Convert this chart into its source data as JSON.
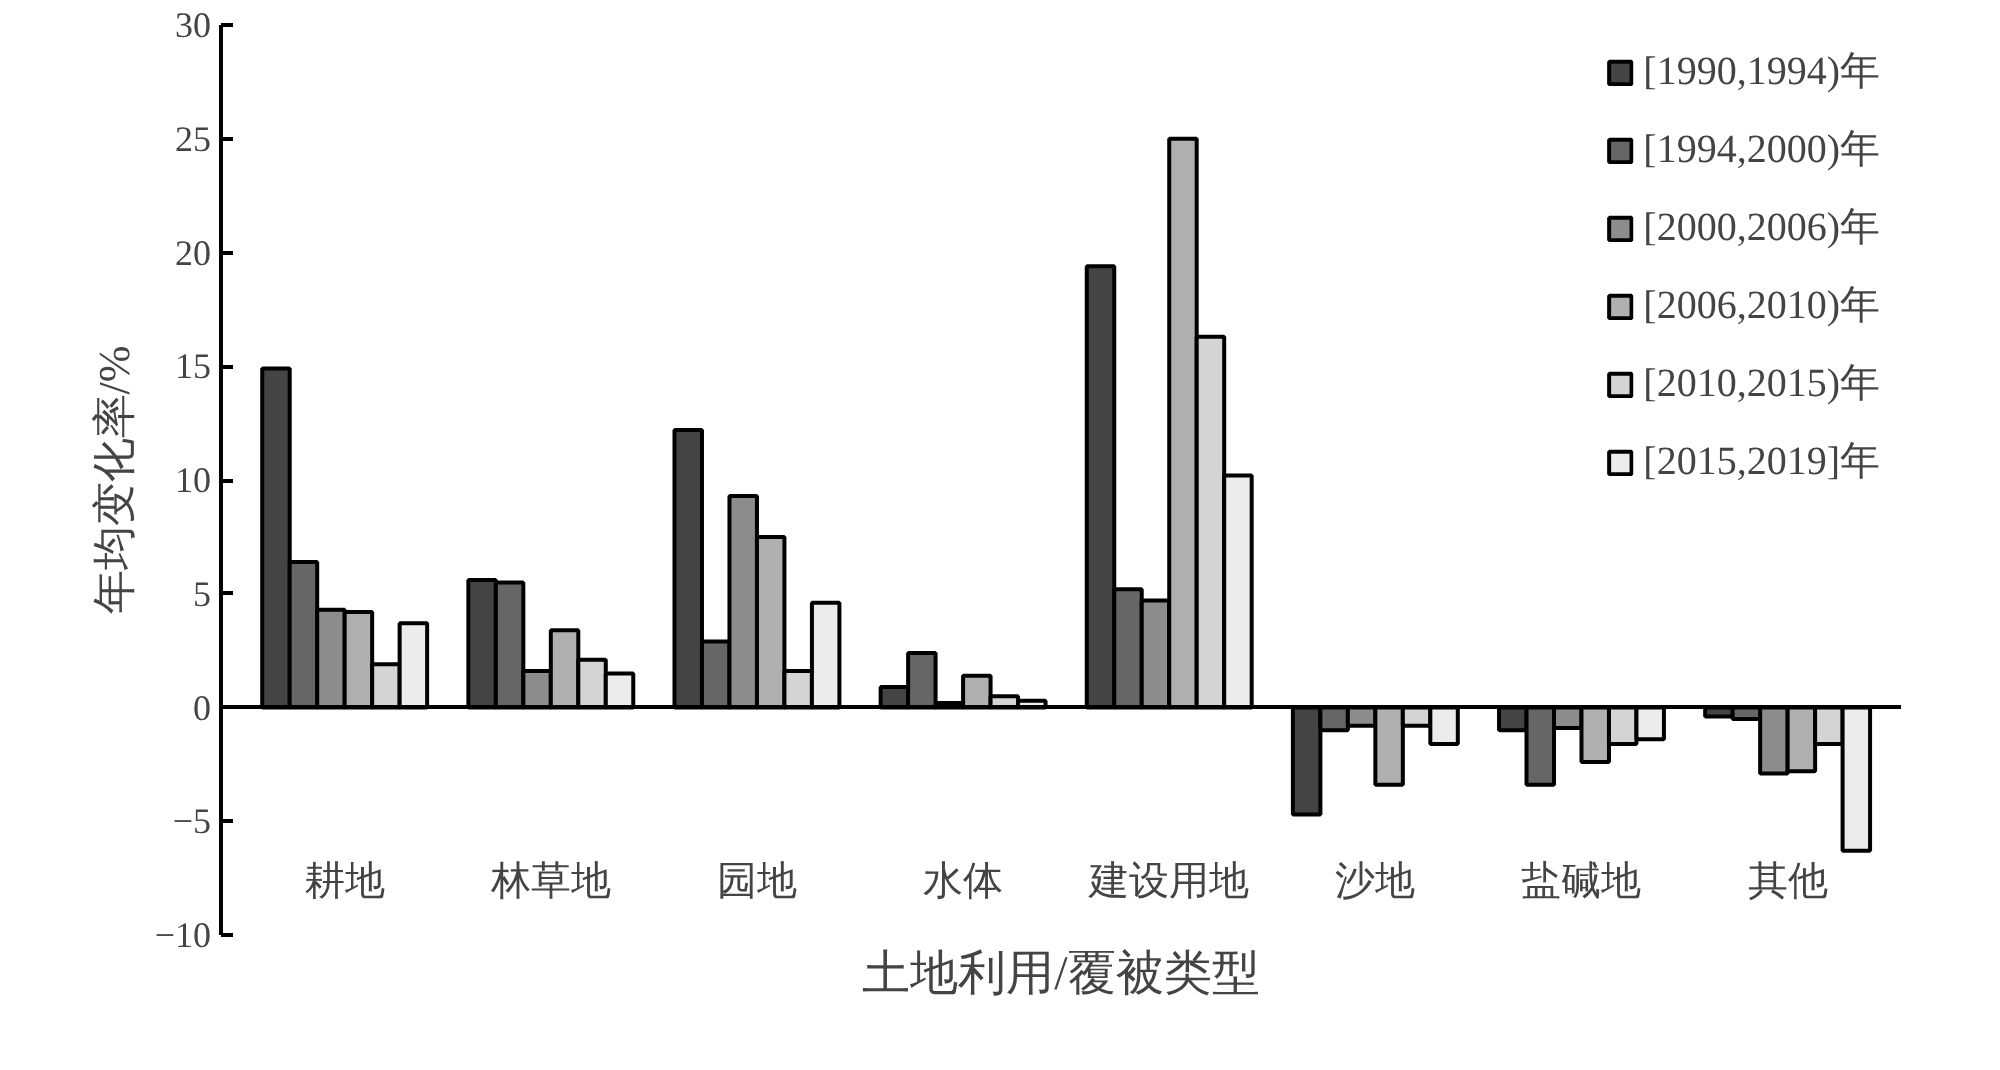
{
  "chart_data": {
    "type": "bar",
    "xlabel": "土地利用/覆被类型",
    "ylabel": "年均变化率/%",
    "categories": [
      "耕地",
      "林草地",
      "园地",
      "水体",
      "建设用地",
      "沙地",
      "盐碱地",
      "其他"
    ],
    "ylim": [
      -10,
      30
    ],
    "yticks": [
      -10,
      -5,
      0,
      5,
      10,
      15,
      20,
      25,
      30
    ],
    "legend": "top right",
    "series": [
      {
        "name": "[1990,1994)年",
        "color": "#444444",
        "values": [
          14.9,
          5.6,
          12.2,
          0.9,
          19.4,
          -4.7,
          -1.0,
          -0.4
        ]
      },
      {
        "name": "[1994,2000)年",
        "color": "#666666",
        "values": [
          6.4,
          5.5,
          2.9,
          2.4,
          5.2,
          -1.0,
          -3.4,
          -0.5
        ]
      },
      {
        "name": "[2000,2006)年",
        "color": "#8c8c8c",
        "values": [
          4.3,
          1.6,
          9.3,
          0.2,
          4.7,
          -0.8,
          -0.9,
          -2.9
        ]
      },
      {
        "name": "[2006,2010)年",
        "color": "#b0b0b0",
        "values": [
          4.2,
          3.4,
          7.5,
          1.4,
          25.0,
          -3.4,
          -2.4,
          -2.8
        ]
      },
      {
        "name": "[2010,2015)年",
        "color": "#d4d4d4",
        "values": [
          1.9,
          2.1,
          1.6,
          0.5,
          16.3,
          -0.8,
          -1.6,
          -1.6
        ]
      },
      {
        "name": "[2015,2019]年",
        "color": "#ececec",
        "values": [
          3.7,
          1.5,
          4.6,
          0.3,
          10.2,
          -1.6,
          -1.4,
          -6.3
        ]
      }
    ]
  }
}
